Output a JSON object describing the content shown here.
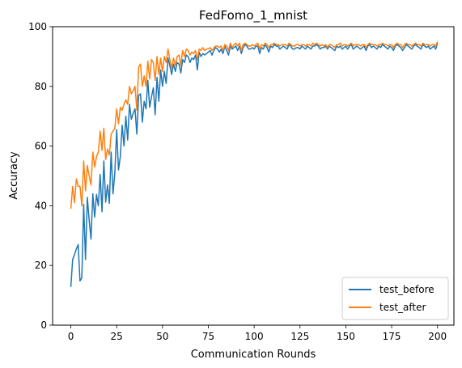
{
  "chart_data": {
    "type": "line",
    "title": "FedFomo_1_mnist",
    "xlabel": "Communication Rounds",
    "ylabel": "Accuracy",
    "xlim": [
      -9.95,
      208.95
    ],
    "ylim": [
      0,
      100
    ],
    "xticks": [
      0,
      25,
      50,
      75,
      100,
      125,
      150,
      175,
      200
    ],
    "yticks": [
      0,
      20,
      40,
      60,
      80,
      100
    ],
    "grid": false,
    "legend_position": "lower-right",
    "x_start": 0,
    "x_step": 1,
    "series": [
      {
        "name": "test_before",
        "color": "#1f77b4",
        "values": [
          12.8,
          22.0,
          23.6,
          25.5,
          27.0,
          14.8,
          15.9,
          40.5,
          22.0,
          42.8,
          35.2,
          28.8,
          44.0,
          36.2,
          43.8,
          40.0,
          50.5,
          38.0,
          55.0,
          41.2,
          47.0,
          40.8,
          58.0,
          44.0,
          51.0,
          65.5,
          52.0,
          56.5,
          67.0,
          60.0,
          70.0,
          62.0,
          74.0,
          69.0,
          71.0,
          72.5,
          64.0,
          77.0,
          77.5,
          68.0,
          75.0,
          72.5,
          82.0,
          73.0,
          76.5,
          79.5,
          70.5,
          83.0,
          75.0,
          85.5,
          80.0,
          85.0,
          81.0,
          89.5,
          87.0,
          84.0,
          87.5,
          85.0,
          88.0,
          87.5,
          84.5,
          89.0,
          88.0,
          90.5,
          90.0,
          88.0,
          89.5,
          89.0,
          90.5,
          85.5,
          91.5,
          90.0,
          91.0,
          90.5,
          91.0,
          91.5,
          92.0,
          90.5,
          92.0,
          93.0,
          92.5,
          91.5,
          92.5,
          91.0,
          93.5,
          92.0,
          90.5,
          93.5,
          92.5,
          93.0,
          93.5,
          92.0,
          93.5,
          91.0,
          93.0,
          94.0,
          93.5,
          92.5,
          92.5,
          93.0,
          92.5,
          93.5,
          93.5,
          91.0,
          93.0,
          92.5,
          94.0,
          93.0,
          91.5,
          93.5,
          93.0,
          94.0,
          93.5,
          93.5,
          92.5,
          93.0,
          93.5,
          93.0,
          92.5,
          94.0,
          93.5,
          92.5,
          92.5,
          93.0,
          93.0,
          92.5,
          93.5,
          93.0,
          92.5,
          93.5,
          93.0,
          92.5,
          93.5,
          93.5,
          94.0,
          93.5,
          92.5,
          93.0,
          93.0,
          93.5,
          92.5,
          93.5,
          93.0,
          92.5,
          92.0,
          93.5,
          93.0,
          93.5,
          92.5,
          93.0,
          93.5,
          92.5,
          93.5,
          94.0,
          92.5,
          93.0,
          93.5,
          93.0,
          92.5,
          93.0,
          93.5,
          92.0,
          93.5,
          94.0,
          93.0,
          93.5,
          93.0,
          92.5,
          93.5,
          93.0,
          94.0,
          93.5,
          93.0,
          92.5,
          93.5,
          93.0,
          92.0,
          93.5,
          94.0,
          93.5,
          93.0,
          92.0,
          93.0,
          94.0,
          93.5,
          93.0,
          92.5,
          93.5,
          94.0,
          93.5,
          93.0,
          92.5,
          94.0,
          93.5,
          93.0,
          93.5,
          92.5,
          93.0,
          93.5,
          92.5,
          94.5
        ]
      },
      {
        "name": "test_after",
        "color": "#ff7f0e",
        "values": [
          39.0,
          46.5,
          41.0,
          49.0,
          46.5,
          46.5,
          40.0,
          55.0,
          45.0,
          53.5,
          50.0,
          47.0,
          58.0,
          53.0,
          56.5,
          58.0,
          65.0,
          58.5,
          66.0,
          55.5,
          59.0,
          57.0,
          64.0,
          65.0,
          66.0,
          72.5,
          67.5,
          73.0,
          72.0,
          74.0,
          75.5,
          74.0,
          80.0,
          77.5,
          78.5,
          80.0,
          72.0,
          86.5,
          87.5,
          80.0,
          83.5,
          80.0,
          88.5,
          82.5,
          89.0,
          88.0,
          82.0,
          90.0,
          84.0,
          89.5,
          85.0,
          90.0,
          88.0,
          92.5,
          89.0,
          86.0,
          89.5,
          87.0,
          90.0,
          90.5,
          87.0,
          92.0,
          90.0,
          92.5,
          92.0,
          90.5,
          91.5,
          91.0,
          92.0,
          89.0,
          92.5,
          92.0,
          93.0,
          92.0,
          92.5,
          92.5,
          93.0,
          92.0,
          93.0,
          93.5,
          93.5,
          93.0,
          93.5,
          92.0,
          94.0,
          93.5,
          92.0,
          94.5,
          93.0,
          94.0,
          94.5,
          93.5,
          94.5,
          92.0,
          94.0,
          94.5,
          94.0,
          93.5,
          93.5,
          94.0,
          93.5,
          94.0,
          94.5,
          92.5,
          94.0,
          93.5,
          94.5,
          94.0,
          93.0,
          94.0,
          94.0,
          94.5,
          94.0,
          94.0,
          93.5,
          94.0,
          94.0,
          94.0,
          93.5,
          94.5,
          94.0,
          93.5,
          93.5,
          94.0,
          94.0,
          93.5,
          94.0,
          94.0,
          93.5,
          94.0,
          94.0,
          93.5,
          94.5,
          94.0,
          94.5,
          94.0,
          93.5,
          94.0,
          93.5,
          94.0,
          93.0,
          94.0,
          94.0,
          93.5,
          93.0,
          94.0,
          94.0,
          94.5,
          93.5,
          94.0,
          94.0,
          93.5,
          94.0,
          94.5,
          93.5,
          94.0,
          94.0,
          94.0,
          93.5,
          94.0,
          94.0,
          93.0,
          94.0,
          94.5,
          94.0,
          94.0,
          94.0,
          93.5,
          94.0,
          94.0,
          94.5,
          94.0,
          94.0,
          93.5,
          94.0,
          94.0,
          93.0,
          94.0,
          94.5,
          94.0,
          94.0,
          93.0,
          94.0,
          94.5,
          94.0,
          94.0,
          93.5,
          94.0,
          94.5,
          94.0,
          94.0,
          93.5,
          94.5,
          94.0,
          94.0,
          94.0,
          93.5,
          94.0,
          94.0,
          93.5,
          95.0
        ]
      }
    ]
  }
}
